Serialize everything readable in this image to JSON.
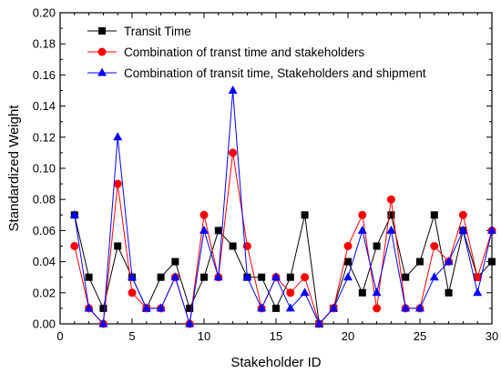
{
  "chart_data": {
    "type": "line",
    "xlabel": "Stakeholder ID",
    "ylabel": "Standardized Weight",
    "xlim": [
      0,
      30
    ],
    "ylim": [
      0,
      0.2
    ],
    "x_ticks": [
      0,
      5,
      10,
      15,
      20,
      25,
      30
    ],
    "y_ticks": [
      0.0,
      0.02,
      0.04,
      0.06,
      0.08,
      0.1,
      0.12,
      0.14,
      0.16,
      0.18,
      0.2
    ],
    "y_tick_labels": [
      "0.00",
      "0.02",
      "0.04",
      "0.06",
      "0.08",
      "0.10",
      "0.12",
      "0.14",
      "0.16",
      "0.18",
      "0.20"
    ],
    "x_tick_labels": [
      "0",
      "5",
      "10",
      "15",
      "20",
      "25",
      "30"
    ],
    "grid": false,
    "legend_position": "top-left",
    "x": [
      1,
      2,
      3,
      4,
      5,
      6,
      7,
      8,
      9,
      10,
      11,
      12,
      13,
      14,
      15,
      16,
      17,
      18,
      19,
      20,
      21,
      22,
      23,
      24,
      25,
      26,
      27,
      28,
      29,
      30
    ],
    "series": [
      {
        "name": "Transit Time",
        "color": "#000000",
        "marker": "square",
        "values": [
          0.07,
          0.03,
          0.01,
          0.05,
          0.03,
          0.01,
          0.03,
          0.04,
          0.01,
          0.03,
          0.06,
          0.05,
          0.03,
          0.03,
          0.01,
          0.03,
          0.07,
          0.0,
          0.01,
          0.04,
          0.02,
          0.05,
          0.07,
          0.03,
          0.04,
          0.07,
          0.02,
          0.06,
          0.03,
          0.04
        ]
      },
      {
        "name": "Combination of transt time and stakeholders",
        "color": "#ff0000",
        "marker": "circle",
        "values": [
          0.05,
          0.01,
          0.0,
          0.09,
          0.02,
          0.01,
          0.01,
          0.03,
          0.0,
          0.07,
          0.03,
          0.11,
          0.05,
          0.01,
          0.03,
          0.02,
          0.03,
          0.0,
          0.01,
          0.05,
          0.07,
          0.01,
          0.08,
          0.01,
          0.01,
          0.05,
          0.04,
          0.07,
          0.03,
          0.06
        ]
      },
      {
        "name": "Combination of transit time, Stakeholders and shipment",
        "color": "#0000ff",
        "marker": "triangle",
        "values": [
          0.07,
          0.01,
          0.0,
          0.12,
          0.03,
          0.01,
          0.01,
          0.03,
          0.0,
          0.06,
          0.03,
          0.15,
          0.03,
          0.01,
          0.03,
          0.01,
          0.02,
          0.0,
          0.01,
          0.03,
          0.06,
          0.02,
          0.06,
          0.01,
          0.01,
          0.03,
          0.04,
          0.06,
          0.02,
          0.06
        ]
      }
    ]
  }
}
